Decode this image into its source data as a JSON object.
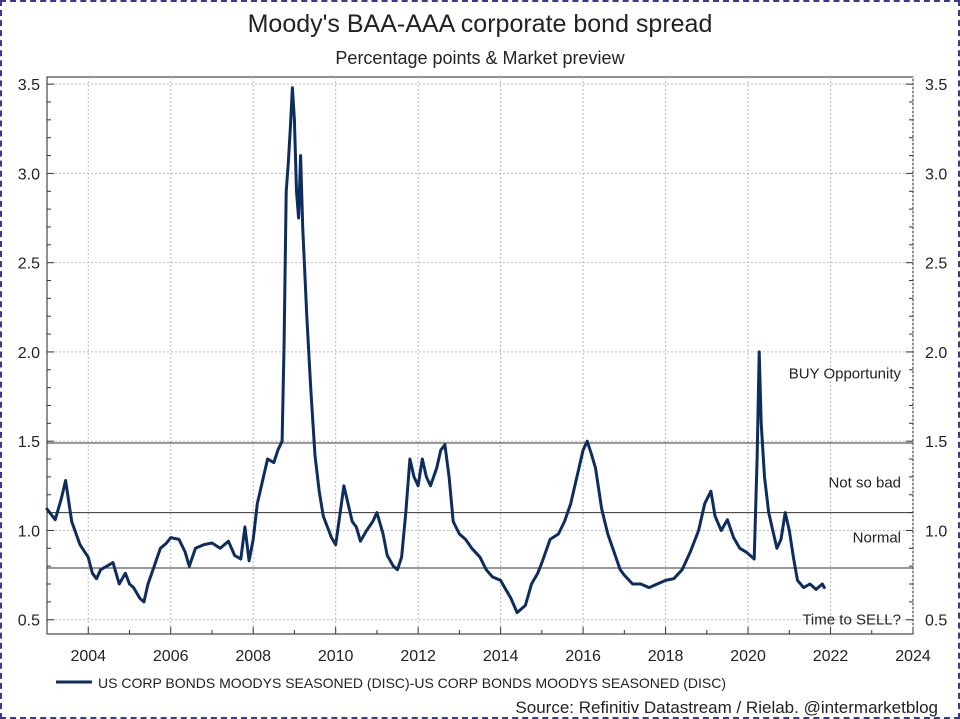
{
  "chart_data": {
    "type": "line",
    "title": "Moody's BAA-AAA corporate bond spread",
    "subtitle": "Percentage points & Market preview",
    "source": "Source: Refinitiv Datastream / Rielab. @intermarketblog",
    "xlim": [
      2003.0,
      2024.0
    ],
    "ylim": [
      0.42,
      3.54
    ],
    "x_ticks": [
      2004,
      2006,
      2008,
      2010,
      2012,
      2014,
      2016,
      2018,
      2020,
      2022,
      2024
    ],
    "y_ticks": [
      0.5,
      1.0,
      1.5,
      2.0,
      2.5,
      3.0,
      3.5
    ],
    "y_tick_labels": [
      "0.5",
      "1.0",
      "1.5",
      "2.0",
      "2.5",
      "3.0",
      "3.5"
    ],
    "grid": true,
    "color": "#0d2d5e",
    "legend_position": "bottom-left",
    "thresholds": [
      1.49,
      1.1,
      0.79
    ],
    "zones": [
      {
        "label": "BUY Opportunity",
        "y": 1.88
      },
      {
        "label": "Not so bad",
        "y": 1.27
      },
      {
        "label": "Normal",
        "y": 0.96
      },
      {
        "label": "Time to SELL?",
        "y": 0.5
      }
    ],
    "series": [
      {
        "name": "US CORP BONDS MOODYS SEASONED (DISC)-US CORP BONDS MOODYS SEASONED (DISC)",
        "x": [
          2003.0,
          2003.2,
          2003.35,
          2003.45,
          2003.6,
          2003.8,
          2004.0,
          2004.1,
          2004.2,
          2004.3,
          2004.45,
          2004.6,
          2004.75,
          2004.9,
          2005.0,
          2005.1,
          2005.25,
          2005.35,
          2005.45,
          2005.6,
          2005.75,
          2005.9,
          2006.0,
          2006.2,
          2006.35,
          2006.45,
          2006.6,
          2006.8,
          2007.0,
          2007.2,
          2007.4,
          2007.55,
          2007.7,
          2007.8,
          2007.9,
          2008.0,
          2008.1,
          2008.2,
          2008.35,
          2008.5,
          2008.6,
          2008.7,
          2008.75,
          2008.8,
          2008.85,
          2008.9,
          2008.95,
          2009.0,
          2009.05,
          2009.1,
          2009.15,
          2009.2,
          2009.3,
          2009.4,
          2009.5,
          2009.6,
          2009.7,
          2009.8,
          2009.9,
          2010.0,
          2010.2,
          2010.4,
          2010.5,
          2010.6,
          2010.75,
          2010.9,
          2011.0,
          2011.15,
          2011.25,
          2011.4,
          2011.5,
          2011.6,
          2011.7,
          2011.8,
          2011.9,
          2012.0,
          2012.1,
          2012.2,
          2012.3,
          2012.45,
          2012.55,
          2012.65,
          2012.75,
          2012.85,
          2013.0,
          2013.15,
          2013.3,
          2013.5,
          2013.65,
          2013.8,
          2014.0,
          2014.1,
          2014.25,
          2014.4,
          2014.5,
          2014.6,
          2014.75,
          2014.9,
          2015.0,
          2015.2,
          2015.4,
          2015.55,
          2015.7,
          2015.85,
          2016.0,
          2016.1,
          2016.2,
          2016.3,
          2016.45,
          2016.6,
          2016.75,
          2016.9,
          2017.0,
          2017.2,
          2017.4,
          2017.6,
          2017.8,
          2018.0,
          2018.2,
          2018.4,
          2018.6,
          2018.8,
          2018.95,
          2019.1,
          2019.2,
          2019.35,
          2019.5,
          2019.65,
          2019.8,
          2019.95,
          2020.05,
          2020.15,
          2020.22,
          2020.27,
          2020.32,
          2020.4,
          2020.5,
          2020.6,
          2020.7,
          2020.8,
          2020.9,
          2021.0,
          2021.1,
          2021.2,
          2021.35,
          2021.5,
          2021.65,
          2021.8,
          2021.85
        ],
        "values": [
          1.12,
          1.06,
          1.18,
          1.28,
          1.05,
          0.92,
          0.85,
          0.76,
          0.73,
          0.78,
          0.8,
          0.82,
          0.7,
          0.76,
          0.7,
          0.68,
          0.62,
          0.6,
          0.7,
          0.8,
          0.9,
          0.93,
          0.96,
          0.95,
          0.88,
          0.8,
          0.9,
          0.92,
          0.93,
          0.9,
          0.94,
          0.86,
          0.84,
          1.02,
          0.83,
          0.95,
          1.15,
          1.25,
          1.4,
          1.38,
          1.45,
          1.5,
          2.05,
          2.9,
          3.05,
          3.25,
          3.48,
          3.3,
          2.9,
          2.75,
          3.1,
          2.7,
          2.2,
          1.78,
          1.42,
          1.22,
          1.08,
          1.02,
          0.96,
          0.92,
          1.25,
          1.05,
          1.02,
          0.94,
          1.0,
          1.05,
          1.1,
          0.98,
          0.86,
          0.8,
          0.78,
          0.85,
          1.1,
          1.4,
          1.3,
          1.25,
          1.4,
          1.3,
          1.25,
          1.35,
          1.45,
          1.48,
          1.3,
          1.05,
          0.98,
          0.95,
          0.9,
          0.85,
          0.78,
          0.74,
          0.72,
          0.68,
          0.62,
          0.54,
          0.56,
          0.58,
          0.7,
          0.76,
          0.82,
          0.95,
          0.98,
          1.05,
          1.15,
          1.3,
          1.45,
          1.5,
          1.43,
          1.35,
          1.12,
          0.98,
          0.88,
          0.78,
          0.75,
          0.7,
          0.7,
          0.68,
          0.7,
          0.72,
          0.73,
          0.78,
          0.88,
          1.0,
          1.15,
          1.22,
          1.08,
          1.0,
          1.06,
          0.96,
          0.9,
          0.88,
          0.86,
          0.84,
          1.4,
          2.0,
          1.6,
          1.3,
          1.1,
          1.0,
          0.9,
          0.95,
          1.1,
          1.0,
          0.85,
          0.72,
          0.68,
          0.7,
          0.67,
          0.7,
          0.68
        ]
      }
    ]
  }
}
